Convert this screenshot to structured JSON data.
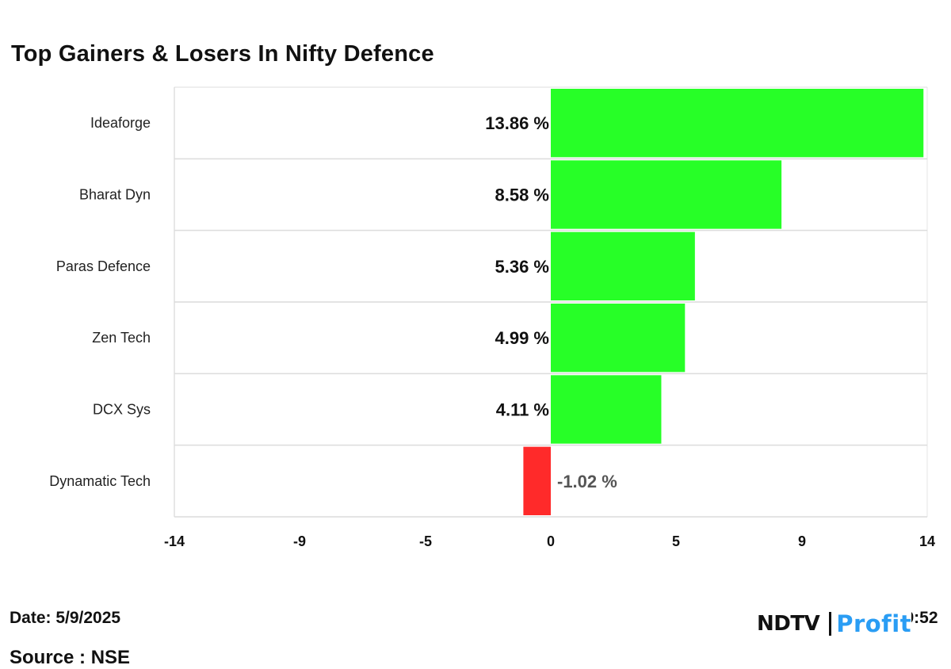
{
  "chart_data": {
    "type": "bar",
    "orientation": "horizontal",
    "title": "Top Gainers & Losers In Nifty Defence",
    "categories": [
      "Ideaforge",
      "Bharat Dyn",
      "Paras Defence",
      "Zen Tech",
      "DCX Sys",
      "Dynamatic Tech"
    ],
    "values": [
      13.86,
      8.58,
      5.36,
      4.99,
      4.11,
      -1.02
    ],
    "value_labels": [
      "13.86 %",
      "8.58 %",
      "5.36 %",
      "4.99 %",
      "4.11 %",
      "-1.02 %"
    ],
    "xlim": [
      -14,
      14
    ],
    "x_ticks": [
      "-14",
      "-9",
      "-5",
      "0",
      "5",
      "9",
      "14"
    ],
    "xlabel": "",
    "ylabel": "",
    "positive_color": "#27ff27",
    "negative_color": "#ff2a2a",
    "grid": true,
    "legend": "none"
  },
  "footer": {
    "date": "Date: 5/9/2025",
    "source": "Source : NSE",
    "time": "Time: 9:52"
  },
  "logo": {
    "ndtv": "NDTV",
    "profit": "Profit"
  }
}
